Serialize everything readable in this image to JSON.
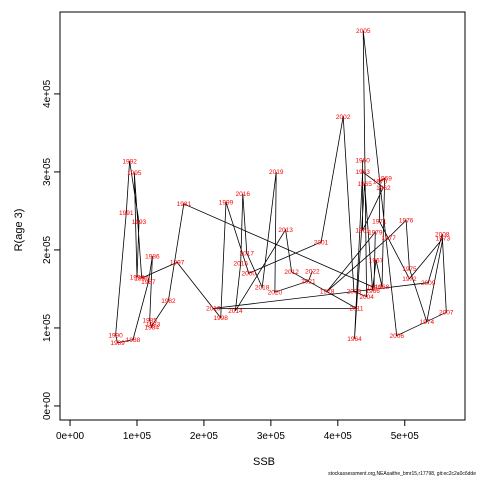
{
  "footer_text": "stockassessment.org,NEAsaithe_bmr15,r17798, git:ec2c2a0c6dde",
  "chart_data": {
    "type": "scatter",
    "connected": true,
    "xlabel": "SSB",
    "ylabel": "R(age 3)",
    "xlim": [
      -15000,
      590000
    ],
    "ylim": [
      -18000,
      505000
    ],
    "xticks": [
      0,
      100000,
      200000,
      300000,
      400000,
      500000
    ],
    "xtick_labels": [
      "0e+00",
      "1e+05",
      "2e+05",
      "3e+05",
      "4e+05",
      "5e+05"
    ],
    "yticks": [
      0,
      100000,
      200000,
      300000,
      400000
    ],
    "ytick_labels": [
      "0e+00",
      "1e+05",
      "2e+05",
      "3e+05",
      "4e+05"
    ],
    "grid": false,
    "line_color": "#000000",
    "label_color": "#ff0000",
    "points": [
      {
        "year": "1960",
        "ssb": 437000,
        "rec": 315000
      },
      {
        "year": "1961",
        "ssb": 437000,
        "rec": 225000
      },
      {
        "year": "1962",
        "ssb": 468000,
        "rec": 280000
      },
      {
        "year": "1963",
        "ssb": 437000,
        "rec": 300000
      },
      {
        "year": "1964",
        "ssb": 425000,
        "rec": 86000
      },
      {
        "year": "1965",
        "ssb": 440000,
        "rec": 285000
      },
      {
        "year": "1966",
        "ssb": 452000,
        "rec": 148000
      },
      {
        "year": "1967",
        "ssb": 457000,
        "rec": 187000
      },
      {
        "year": "1968",
        "ssb": 466000,
        "rec": 153000
      },
      {
        "year": "1969",
        "ssb": 470000,
        "rec": 292000
      },
      {
        "year": "1970",
        "ssb": 463000,
        "rec": 288000
      },
      {
        "year": "1971",
        "ssb": 462000,
        "rec": 237000
      },
      {
        "year": "1972",
        "ssb": 507000,
        "rec": 163000
      },
      {
        "year": "1973",
        "ssb": 557000,
        "rec": 215000
      },
      {
        "year": "1974",
        "ssb": 533000,
        "rec": 108000
      },
      {
        "year": "1975",
        "ssb": 507000,
        "rec": 176000
      },
      {
        "year": "1976",
        "ssb": 502000,
        "rec": 238000
      },
      {
        "year": "1977",
        "ssb": 476000,
        "rec": 216000
      },
      {
        "year": "1978",
        "ssb": 384000,
        "rec": 147000
      },
      {
        "year": "1979",
        "ssb": 456000,
        "rec": 223000
      },
      {
        "year": "1980",
        "ssb": 454000,
        "rec": 152000
      },
      {
        "year": "1981",
        "ssb": 170000,
        "rec": 259000
      },
      {
        "year": "1982",
        "ssb": 147000,
        "rec": 135000
      },
      {
        "year": "1983",
        "ssb": 124000,
        "rec": 105000
      },
      {
        "year": "1984",
        "ssb": 122000,
        "rec": 101000
      },
      {
        "year": "1985",
        "ssb": 119000,
        "rec": 110000
      },
      {
        "year": "1986",
        "ssb": 123000,
        "rec": 192000
      },
      {
        "year": "1987",
        "ssb": 117000,
        "rec": 159000
      },
      {
        "year": "1988",
        "ssb": 94000,
        "rec": 85000
      },
      {
        "year": "1989",
        "ssb": 71000,
        "rec": 81000
      },
      {
        "year": "1990",
        "ssb": 68000,
        "rec": 91000
      },
      {
        "year": "1991",
        "ssb": 84000,
        "rec": 248000
      },
      {
        "year": "1992",
        "ssb": 89000,
        "rec": 314000
      },
      {
        "year": "1993",
        "ssb": 103000,
        "rec": 236000
      },
      {
        "year": "1994",
        "ssb": 100000,
        "rec": 165000
      },
      {
        "year": "1995",
        "ssb": 96000,
        "rec": 299000
      },
      {
        "year": "1996",
        "ssb": 107000,
        "rec": 164000
      },
      {
        "year": "1997",
        "ssb": 160000,
        "rec": 184000
      },
      {
        "year": "1998",
        "ssb": 225000,
        "rec": 113000
      },
      {
        "year": "1999",
        "ssb": 233000,
        "rec": 261000
      },
      {
        "year": "2000",
        "ssb": 267000,
        "rec": 170000
      },
      {
        "year": "2001",
        "ssb": 375000,
        "rec": 210000
      },
      {
        "year": "2002",
        "ssb": 408000,
        "rec": 371000
      },
      {
        "year": "2003",
        "ssb": 424000,
        "rec": 147000
      },
      {
        "year": "2004",
        "ssb": 443000,
        "rec": 140000
      },
      {
        "year": "2005",
        "ssb": 438000,
        "rec": 481000
      },
      {
        "year": "2006",
        "ssb": 488000,
        "rec": 90000
      },
      {
        "year": "2007",
        "ssb": 562000,
        "rec": 120000
      },
      {
        "year": "2008",
        "ssb": 556000,
        "rec": 220000
      },
      {
        "year": "2009",
        "ssb": 535000,
        "rec": 158000
      },
      {
        "year": "2010",
        "ssb": 214000,
        "rec": 125000
      },
      {
        "year": "2011",
        "ssb": 428000,
        "rec": 125000
      },
      {
        "year": "2012",
        "ssb": 331000,
        "rec": 172000
      },
      {
        "year": "2013",
        "ssb": 322000,
        "rec": 226000
      },
      {
        "year": "2014",
        "ssb": 247000,
        "rec": 122000
      },
      {
        "year": "2015",
        "ssb": 255000,
        "rec": 183000
      },
      {
        "year": "2016",
        "ssb": 258000,
        "rec": 272000
      },
      {
        "year": "2017",
        "ssb": 264000,
        "rec": 196000
      },
      {
        "year": "2018",
        "ssb": 287000,
        "rec": 152000
      },
      {
        "year": "2019",
        "ssb": 308000,
        "rec": 300000
      },
      {
        "year": "2020",
        "ssb": 306000,
        "rec": 146000
      },
      {
        "year": "2021",
        "ssb": 356000,
        "rec": 160000
      },
      {
        "year": "2022",
        "ssb": 362000,
        "rec": 173000
      }
    ]
  }
}
